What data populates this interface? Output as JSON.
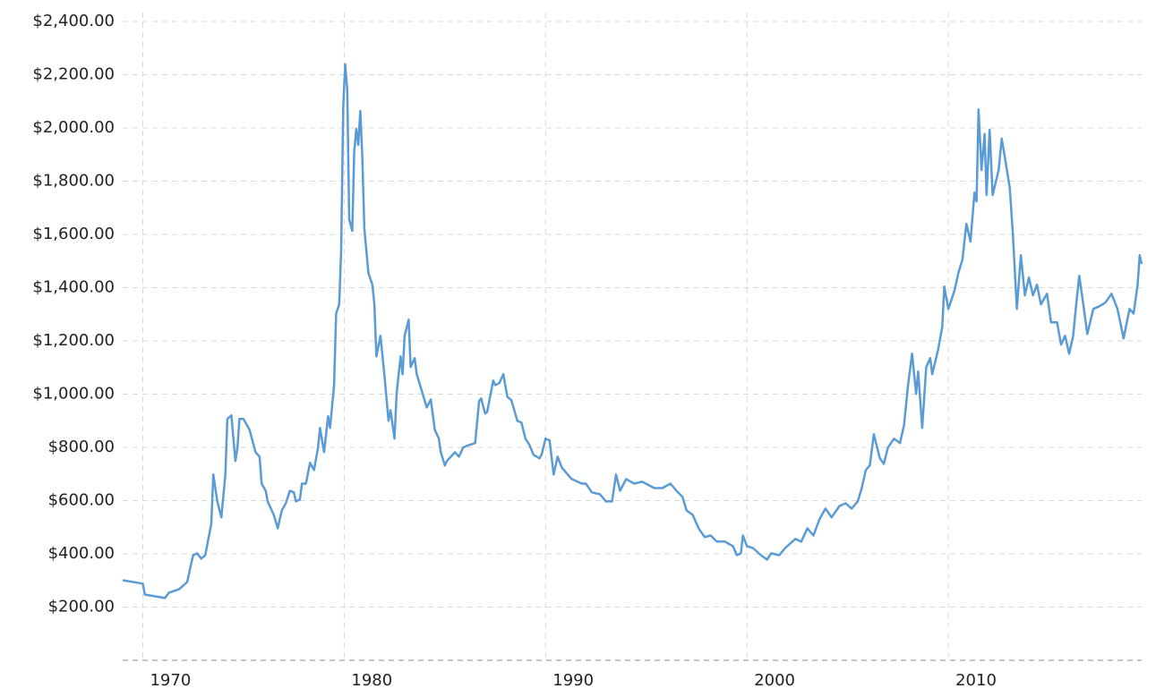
{
  "chart_data": {
    "type": "line",
    "x": [
      1969.0,
      1970.0,
      1970.1,
      1971.1,
      1971.3,
      1971.8,
      1972.2,
      1972.5,
      1972.7,
      1972.9,
      1973.1,
      1973.4,
      1973.5,
      1973.7,
      1973.9,
      1974.1,
      1974.2,
      1974.4,
      1974.6,
      1974.7,
      1974.8,
      1975.0,
      1975.3,
      1975.6,
      1975.8,
      1975.9,
      1976.1,
      1976.2,
      1976.5,
      1976.7,
      1976.9,
      1977.1,
      1977.3,
      1977.5,
      1977.6,
      1977.8,
      1977.9,
      1978.1,
      1978.3,
      1978.5,
      1978.7,
      1978.8,
      1979.0,
      1979.2,
      1979.3,
      1979.5,
      1979.6,
      1979.75,
      1979.85,
      1979.95,
      1980.05,
      1980.15,
      1980.25,
      1980.4,
      1980.5,
      1980.6,
      1980.7,
      1980.8,
      1980.9,
      1981.0,
      1981.2,
      1981.4,
      1981.5,
      1981.6,
      1981.8,
      1982.0,
      1982.2,
      1982.3,
      1982.5,
      1982.6,
      1982.8,
      1982.9,
      1983.0,
      1983.2,
      1983.3,
      1983.5,
      1983.6,
      1983.9,
      1984.1,
      1984.3,
      1984.5,
      1984.7,
      1984.8,
      1985.0,
      1985.1,
      1985.3,
      1985.5,
      1985.7,
      1985.9,
      1986.1,
      1986.5,
      1986.7,
      1986.8,
      1987.0,
      1987.1,
      1987.4,
      1987.5,
      1987.7,
      1987.9,
      1988.1,
      1988.3,
      1988.6,
      1988.8,
      1989.0,
      1989.2,
      1989.4,
      1989.7,
      1989.8,
      1990.0,
      1990.2,
      1990.4,
      1990.6,
      1990.8,
      1991.1,
      1991.3,
      1991.8,
      1992.0,
      1992.3,
      1992.7,
      1993.0,
      1993.3,
      1993.5,
      1993.7,
      1994.0,
      1994.4,
      1994.8,
      1995.4,
      1995.8,
      1996.2,
      1996.5,
      1996.8,
      1997.0,
      1997.3,
      1997.6,
      1997.9,
      1998.2,
      1998.5,
      1998.9,
      1999.3,
      1999.5,
      1999.7,
      1999.8,
      2000.0,
      2000.3,
      2000.7,
      2001.0,
      2001.2,
      2001.6,
      2001.9,
      2002.4,
      2002.7,
      2003.0,
      2003.3,
      2003.6,
      2003.9,
      2004.2,
      2004.6,
      2004.9,
      2005.2,
      2005.5,
      2005.7,
      2005.9,
      2006.1,
      2006.3,
      2006.6,
      2006.8,
      2007.0,
      2007.3,
      2007.6,
      2007.8,
      2008.0,
      2008.2,
      2008.4,
      2008.5,
      2008.7,
      2008.9,
      2009.1,
      2009.2,
      2009.5,
      2009.7,
      2009.8,
      2010.0,
      2010.3,
      2010.5,
      2010.7,
      2010.9,
      2011.1,
      2011.3,
      2011.4,
      2011.5,
      2011.65,
      2011.8,
      2011.9,
      2012.05,
      2012.2,
      2012.5,
      2012.65,
      2012.8,
      2013.05,
      2013.2,
      2013.4,
      2013.6,
      2013.8,
      2014.0,
      2014.2,
      2014.4,
      2014.6,
      2014.9,
      2015.1,
      2015.4,
      2015.6,
      2015.8,
      2016.0,
      2016.2,
      2016.35,
      2016.5,
      2016.7,
      2016.9,
      2017.2,
      2017.5,
      2017.8,
      2018.1,
      2018.4,
      2018.7,
      2019.0,
      2019.2,
      2019.4,
      2019.5,
      2019.6
    ],
    "series": [
      {
        "color": "#5b9bd5",
        "values": [
          301,
          288,
          247,
          234,
          254,
          267,
          294,
          395,
          402,
          382,
          395,
          513,
          698,
          597,
          537,
          698,
          907,
          920,
          749,
          799,
          907,
          907,
          866,
          782,
          765,
          664,
          637,
          597,
          547,
          496,
          563,
          590,
          637,
          631,
          597,
          604,
          664,
          664,
          742,
          715,
          799,
          873,
          782,
          917,
          873,
          1034,
          1303,
          1337,
          1539,
          2077,
          2239,
          2144,
          1657,
          1613,
          1909,
          1997,
          1936,
          2064,
          1892,
          1623,
          1455,
          1411,
          1337,
          1142,
          1219,
          1068,
          900,
          940,
          833,
          1001,
          1142,
          1075,
          1219,
          1280,
          1102,
          1135,
          1075,
          1001,
          950,
          980,
          866,
          833,
          782,
          732,
          749,
          765,
          782,
          765,
          799,
          806,
          816,
          974,
          984,
          927,
          933,
          1051,
          1034,
          1041,
          1075,
          990,
          977,
          900,
          893,
          833,
          809,
          772,
          759,
          772,
          833,
          826,
          698,
          765,
          725,
          698,
          681,
          664,
          664,
          631,
          624,
          597,
          597,
          698,
          637,
          681,
          664,
          671,
          647,
          647,
          664,
          637,
          614,
          563,
          547,
          496,
          463,
          469,
          446,
          446,
          429,
          395,
          402,
          469,
          429,
          422,
          395,
          378,
          402,
          395,
          422,
          456,
          446,
          496,
          469,
          530,
          570,
          537,
          580,
          590,
          570,
          597,
          647,
          715,
          732,
          849,
          759,
          738,
          799,
          833,
          816,
          883,
          1034,
          1152,
          1001,
          1085,
          873,
          1102,
          1135,
          1075,
          1169,
          1253,
          1404,
          1320,
          1387,
          1455,
          1505,
          1640,
          1573,
          1757,
          1724,
          2070,
          1842,
          1977,
          1748,
          1993,
          1748,
          1842,
          1960,
          1892,
          1775,
          1606,
          1320,
          1522,
          1371,
          1438,
          1371,
          1411,
          1337,
          1377,
          1270,
          1270,
          1186,
          1219,
          1152,
          1219,
          1337,
          1445,
          1337,
          1226,
          1320,
          1330,
          1344,
          1377,
          1320,
          1209,
          1320,
          1303,
          1411,
          1522,
          1489
        ]
      }
    ],
    "xlim": [
      1969,
      2019.6
    ],
    "xticks": [
      1970,
      1980,
      1990,
      2000,
      2010
    ],
    "ylim": [
      0,
      2400
    ],
    "yticks": [
      {
        "value": 200,
        "label": "$200.00"
      },
      {
        "value": 400,
        "label": "$400.00"
      },
      {
        "value": 600,
        "label": "$600.00"
      },
      {
        "value": 800,
        "label": "$800.00"
      },
      {
        "value": 1000,
        "label": "$1,000.00"
      },
      {
        "value": 1200,
        "label": "$1,200.00"
      },
      {
        "value": 1400,
        "label": "$1,400.00"
      },
      {
        "value": 1600,
        "label": "$1,600.00"
      },
      {
        "value": 1800,
        "label": "$1,800.00"
      },
      {
        "value": 2000,
        "label": "$2,000.00"
      },
      {
        "value": 2200,
        "label": "$2,200.00"
      },
      {
        "value": 2400,
        "label": "$2,400.00"
      }
    ],
    "grid": true
  }
}
